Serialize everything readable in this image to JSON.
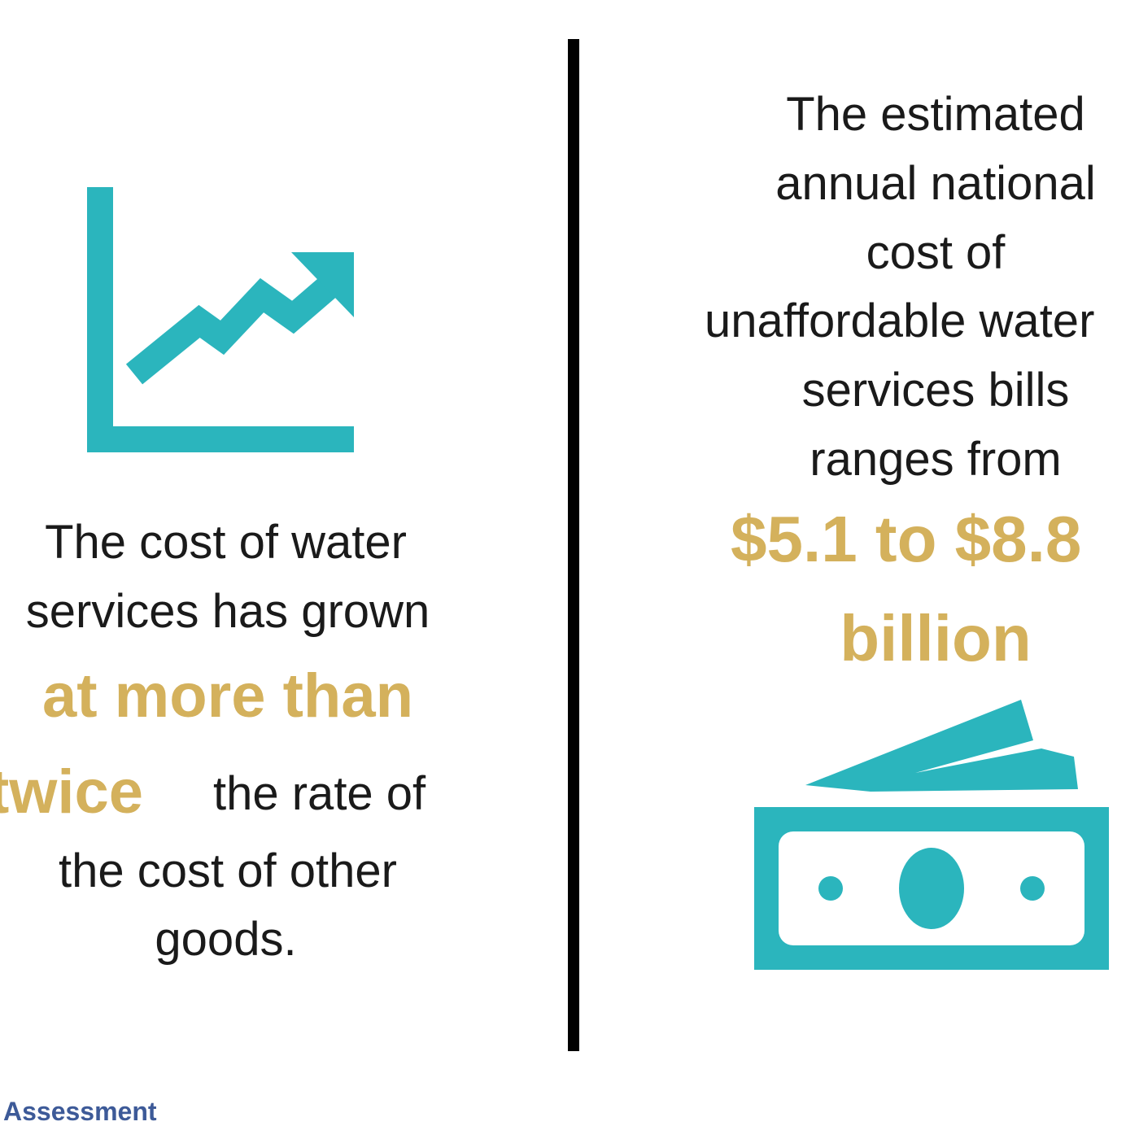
{
  "left": {
    "icon": "growth-chart-icon",
    "lines": [
      "The cost of water",
      "services has grown",
      "at more than",
      "twice",
      "the rate of",
      "the cost of other",
      "goods."
    ]
  },
  "right": {
    "lines": [
      "The estimated",
      "annual national",
      "cost of",
      "unaffordable water",
      "services bills",
      "ranges from",
      "$5.1 to $8.8",
      "billion"
    ],
    "icon": "money-bills-icon"
  },
  "footer": {
    "text": "Assessment"
  },
  "colors": {
    "accent": "#2bb5bd",
    "gold": "#d4b15c",
    "text": "#1a1a1a",
    "footer": "#3d5a98"
  }
}
